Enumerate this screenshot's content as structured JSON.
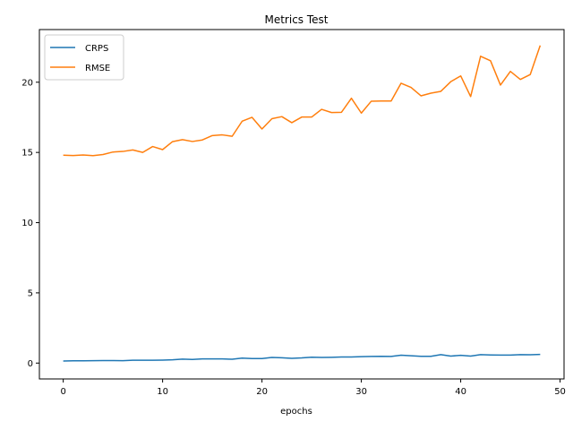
{
  "chart_data": {
    "type": "line",
    "title": "Metrics Test",
    "xlabel": "epochs",
    "ylabel": "",
    "xlim": [
      -2.4,
      50.4
    ],
    "ylim": [
      -1.13,
      23.75
    ],
    "xticks": [
      0,
      10,
      20,
      30,
      40,
      50
    ],
    "yticks": [
      0,
      5,
      10,
      15,
      20
    ],
    "grid": false,
    "legend_position": "top-left",
    "x": [
      0,
      1,
      2,
      3,
      4,
      5,
      6,
      7,
      8,
      9,
      10,
      11,
      12,
      13,
      14,
      15,
      16,
      17,
      18,
      19,
      20,
      21,
      22,
      23,
      24,
      25,
      26,
      27,
      28,
      29,
      30,
      31,
      32,
      33,
      34,
      35,
      36,
      37,
      38,
      39,
      40,
      41,
      42,
      43,
      44,
      45,
      46,
      47,
      48
    ],
    "series": [
      {
        "name": "CRPS",
        "color": "#1f77b4",
        "values": [
          0.15,
          0.16,
          0.16,
          0.17,
          0.18,
          0.18,
          0.17,
          0.2,
          0.2,
          0.2,
          0.21,
          0.23,
          0.28,
          0.26,
          0.3,
          0.3,
          0.3,
          0.27,
          0.35,
          0.32,
          0.32,
          0.4,
          0.38,
          0.34,
          0.37,
          0.42,
          0.4,
          0.41,
          0.43,
          0.43,
          0.46,
          0.47,
          0.48,
          0.47,
          0.56,
          0.52,
          0.48,
          0.48,
          0.6,
          0.5,
          0.55,
          0.5,
          0.6,
          0.58,
          0.57,
          0.57,
          0.6,
          0.59,
          0.62
        ]
      },
      {
        "name": "RMSE",
        "color": "#ff7f0e",
        "values": [
          14.8,
          14.78,
          14.82,
          14.77,
          14.85,
          15.03,
          15.07,
          15.18,
          15.0,
          15.42,
          15.2,
          15.77,
          15.91,
          15.78,
          15.89,
          16.2,
          16.25,
          16.15,
          17.22,
          17.5,
          16.67,
          17.4,
          17.55,
          17.12,
          17.52,
          17.52,
          18.07,
          17.84,
          17.86,
          18.86,
          17.8,
          18.65,
          18.66,
          18.66,
          19.93,
          19.63,
          19.03,
          19.22,
          19.35,
          20.04,
          20.45,
          18.98,
          21.85,
          21.53,
          19.8,
          20.77,
          20.2,
          20.55,
          22.62
        ]
      }
    ]
  }
}
